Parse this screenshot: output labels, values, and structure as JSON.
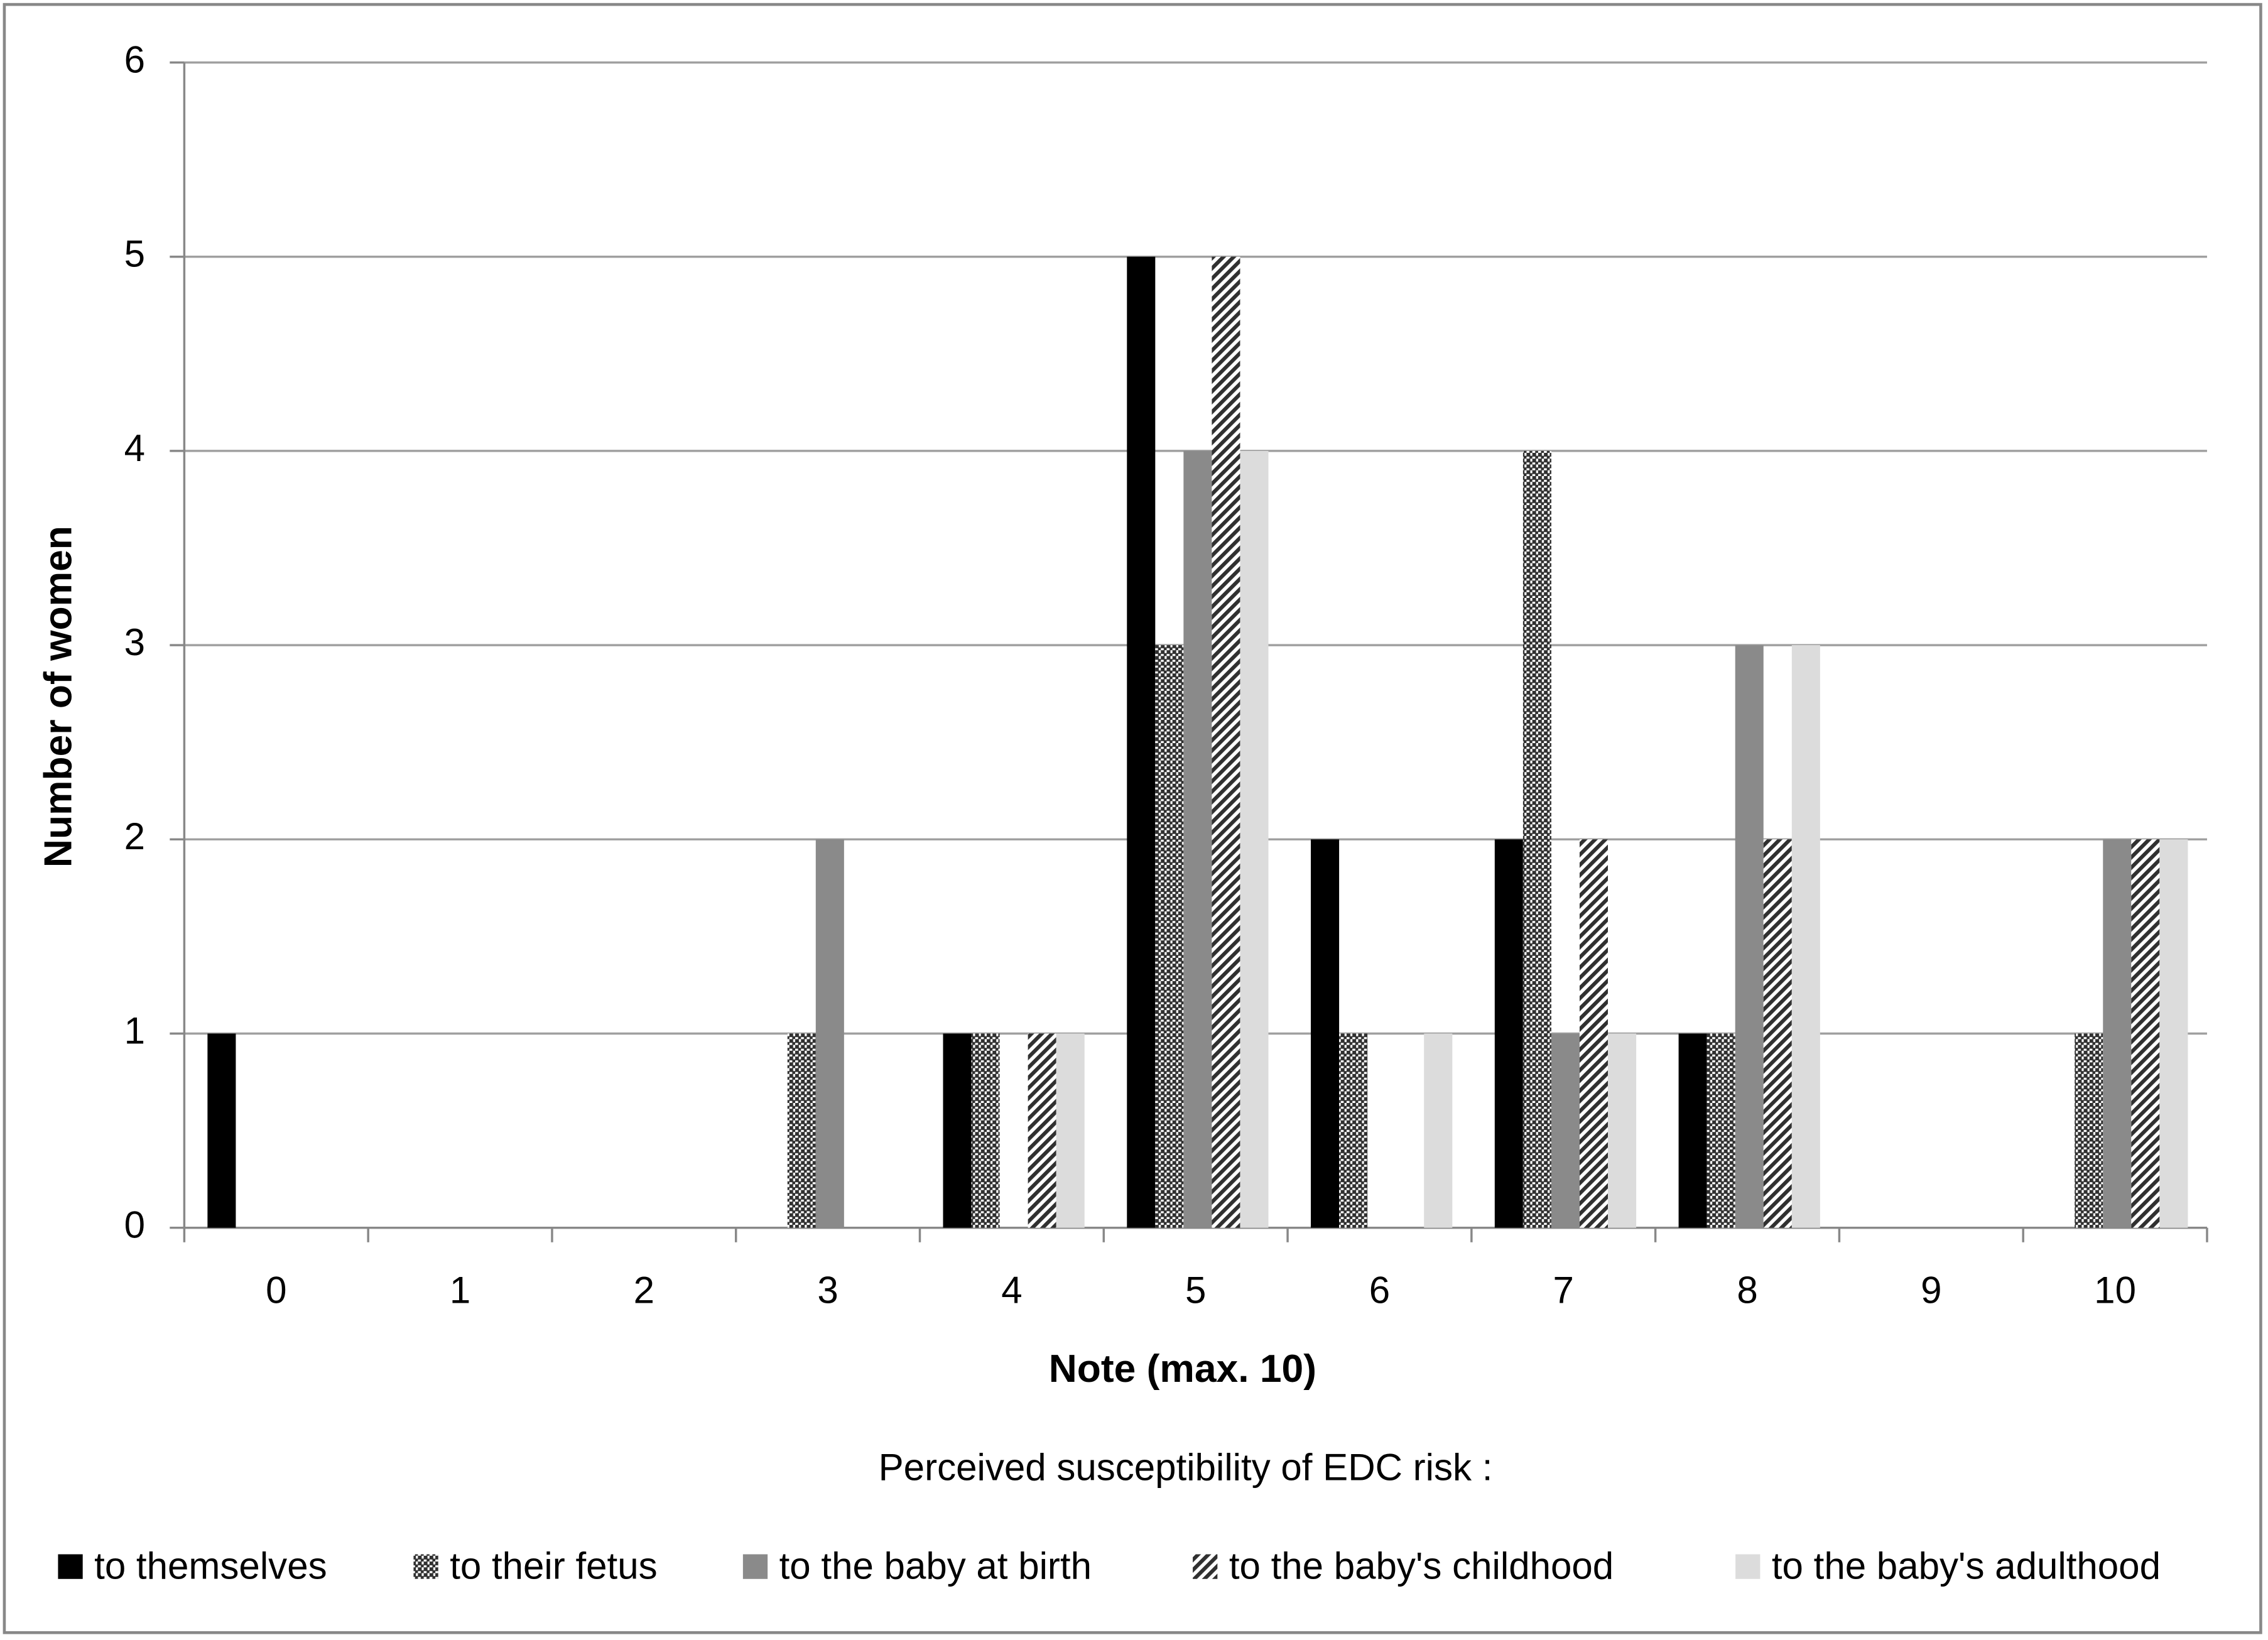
{
  "chart_data": {
    "type": "bar",
    "x_label": "Note (max. 10)",
    "y_label": "Number  of women",
    "legend_title": "Perceived susceptibility of EDC risk :",
    "categories": [
      "0",
      "1",
      "2",
      "3",
      "4",
      "5",
      "6",
      "7",
      "8",
      "9",
      "10"
    ],
    "series": [
      {
        "name": "to themselves",
        "color": "#000000",
        "pattern": "solid",
        "values": [
          1,
          0,
          0,
          0,
          1,
          5,
          2,
          2,
          1,
          0,
          0
        ]
      },
      {
        "name": "to their fetus",
        "color": "#303030",
        "pattern": "dots",
        "values": [
          0,
          0,
          0,
          1,
          1,
          3,
          1,
          4,
          1,
          0,
          1
        ]
      },
      {
        "name": "to the baby at birth",
        "color": "#8a8a8a",
        "pattern": "solid",
        "values": [
          0,
          0,
          0,
          2,
          0,
          4,
          0,
          1,
          3,
          0,
          2
        ]
      },
      {
        "name": "to the baby's childhood",
        "color": "#303030",
        "pattern": "diagonal",
        "values": [
          0,
          0,
          0,
          0,
          1,
          5,
          0,
          2,
          2,
          0,
          2
        ]
      },
      {
        "name": "to the baby's adulthood",
        "color": "#dcdcdc",
        "pattern": "solid",
        "values": [
          0,
          0,
          0,
          0,
          1,
          4,
          1,
          1,
          3,
          0,
          2
        ]
      }
    ],
    "ylim": [
      0,
      6
    ],
    "yticks": [
      0,
      1,
      2,
      3,
      4,
      5,
      6
    ],
    "grid": true,
    "legend": "bottom"
  }
}
